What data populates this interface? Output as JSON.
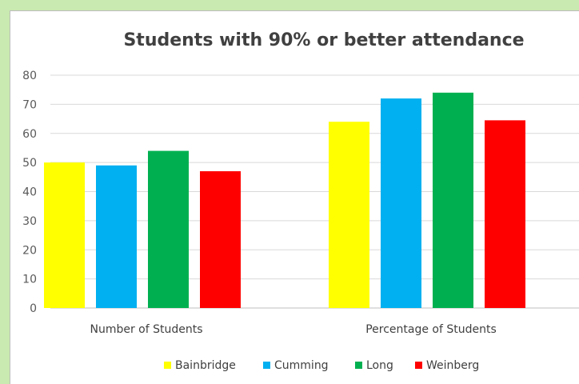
{
  "chart_data": {
    "type": "bar",
    "title": "Students with 90% or better attendance",
    "categories": [
      "Number of Students",
      "Percentage of Students"
    ],
    "series": [
      {
        "name": "Bainbridge",
        "color": "#ffff00",
        "values": [
          50,
          64
        ]
      },
      {
        "name": "Cumming",
        "color": "#00b0f0",
        "values": [
          49,
          72
        ]
      },
      {
        "name": "Long",
        "color": "#00b050",
        "values": [
          54,
          74
        ]
      },
      {
        "name": "Weinberg",
        "color": "#ff0000",
        "values": [
          47,
          64.5
        ]
      }
    ],
    "ylim": [
      0,
      80
    ],
    "yticks": [
      0,
      10,
      20,
      30,
      40,
      50,
      60,
      70,
      80
    ],
    "grid": true,
    "legend_position": "bottom",
    "xlabel": "",
    "ylabel": ""
  }
}
